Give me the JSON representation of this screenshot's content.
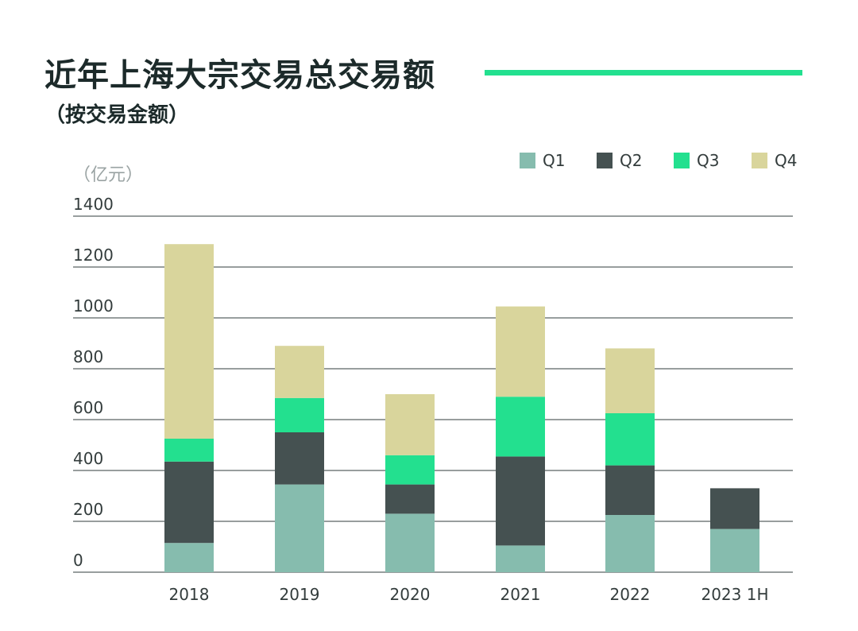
{
  "header": {
    "title": "近年上海大宗交易总交易额",
    "subtitle": "（按交易金额）",
    "unit": "（亿元）"
  },
  "colors": {
    "accent_rule": "#23e08f",
    "gridline": "#5a6464",
    "Q1": "#86bcae",
    "Q2": "#455151",
    "Q3": "#23e08f",
    "Q4": "#d9d59c"
  },
  "chart_data": {
    "type": "bar",
    "stacked": true,
    "categories": [
      "2018",
      "2019",
      "2020",
      "2021",
      "2022",
      "2023 1H"
    ],
    "series": [
      {
        "name": "Q1",
        "values": [
          115,
          345,
          230,
          105,
          225,
          170
        ]
      },
      {
        "name": "Q2",
        "values": [
          320,
          205,
          115,
          350,
          195,
          160
        ]
      },
      {
        "name": "Q3",
        "values": [
          90,
          135,
          115,
          235,
          205,
          0
        ]
      },
      {
        "name": "Q4",
        "values": [
          765,
          205,
          240,
          355,
          255,
          0
        ]
      }
    ],
    "title": "近年上海大宗交易总交易额",
    "ylabel": "（亿元）",
    "ylim": [
      0,
      1400
    ],
    "yticks": [
      0,
      200,
      400,
      600,
      800,
      1000,
      1200,
      1400
    ],
    "grid": true,
    "legend": "top-right"
  }
}
